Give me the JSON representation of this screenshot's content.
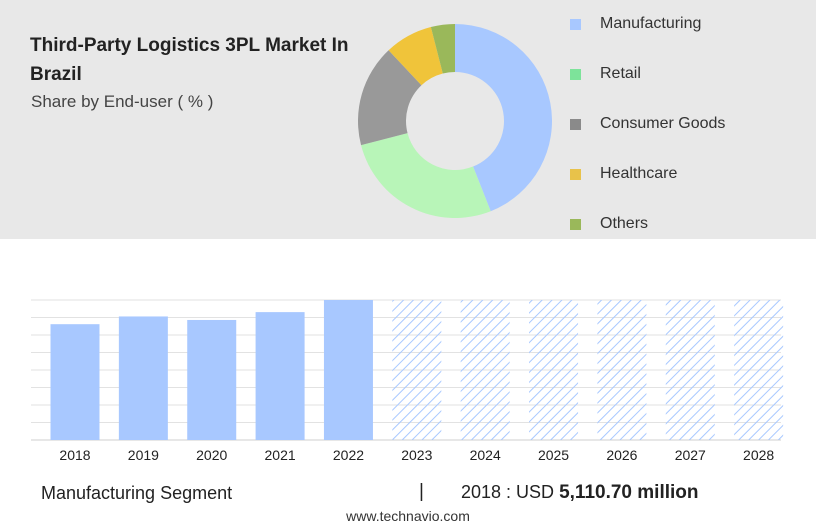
{
  "header": {
    "title": "Third-Party Logistics 3PL Market In Brazil",
    "subtitle": "Share by End-user ( % )"
  },
  "chart_data": [
    {
      "type": "pie",
      "variant": "donut",
      "categories": [
        "Manufacturing",
        "Retail",
        "Consumer Goods",
        "Healthcare",
        "Others"
      ],
      "values": [
        44,
        27,
        17,
        8,
        4
      ],
      "colors": [
        "#a8c8ff",
        "#b8f5b8",
        "#999999",
        "#f0c43a",
        "#9ab85a"
      ],
      "legend_position": "right"
    },
    {
      "type": "bar",
      "categories": [
        "2018",
        "2019",
        "2020",
        "2021",
        "2022",
        "2023",
        "2024",
        "2025",
        "2026",
        "2027",
        "2028"
      ],
      "values": [
        5110.7,
        5452,
        5297,
        5643,
        6178,
        null,
        null,
        null,
        null,
        null,
        null
      ],
      "forecast_years": [
        "2023",
        "2024",
        "2025",
        "2026",
        "2027",
        "2028"
      ],
      "ylim": [
        0,
        6178
      ],
      "grid": true,
      "bar_color": "#a8c8ff",
      "forecast_color": "#a8c8ff"
    }
  ],
  "legend": {
    "items": [
      {
        "label": "Manufacturing",
        "color": "#a8c8ff"
      },
      {
        "label": "Retail",
        "color": "#7de39a"
      },
      {
        "label": "Consumer Goods",
        "color": "#8a8a8a"
      },
      {
        "label": "Healthcare",
        "color": "#e8c24a"
      },
      {
        "label": "Others",
        "color": "#9ab85a"
      }
    ]
  },
  "footer": {
    "segment": "Manufacturing Segment",
    "separator": "|",
    "value_prefix": "2018 : USD",
    "value_amount": "5,110.70 million",
    "source": "www.technavio.com"
  }
}
